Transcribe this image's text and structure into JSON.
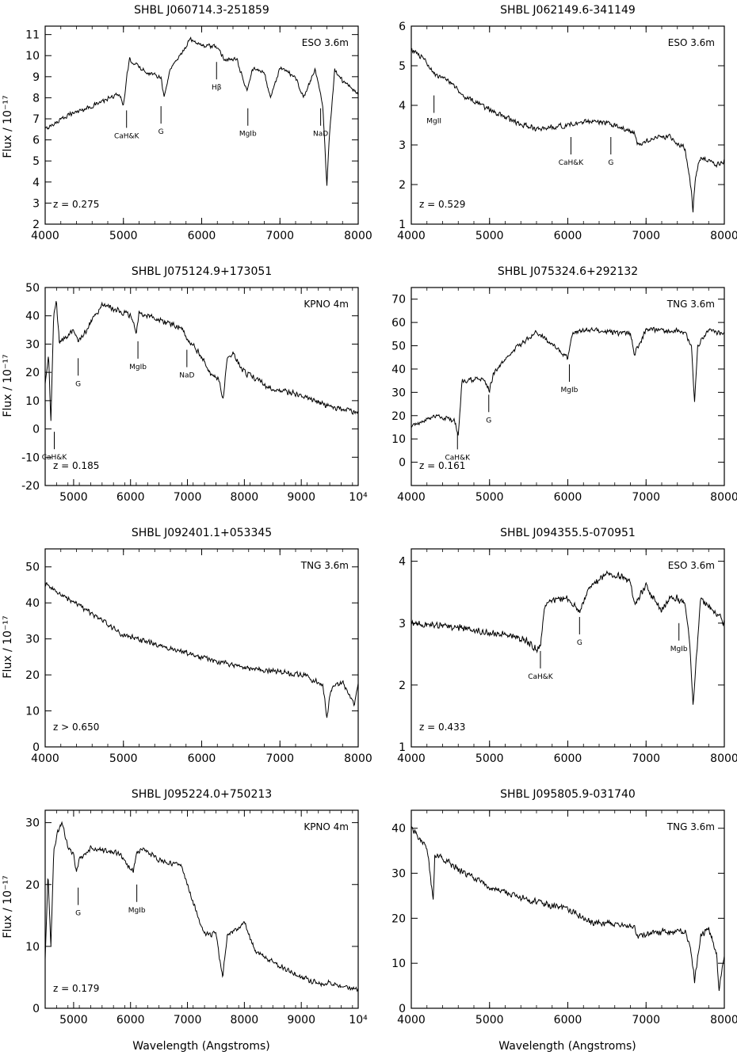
{
  "figure": {
    "ylabel_text": "Flux / 10⁻¹⁷",
    "xlabel_text": "Wavelength (Angstroms)"
  },
  "chart_data": [
    {
      "type": "line",
      "title": "SHBL J060714.3-251859",
      "telescope": "ESO 3.6m",
      "redshift": "z = 0.275",
      "xlim": [
        4000,
        8000
      ],
      "ylim": [
        2,
        11.4
      ],
      "xticks": [
        4000,
        5000,
        6000,
        7000,
        8000
      ],
      "yticks": [
        2,
        3,
        4,
        5,
        6,
        7,
        8,
        9,
        10,
        11
      ],
      "xtick_labels": [
        "4000",
        "5000",
        "6000",
        "7000",
        "8000"
      ],
      "noise": 0.12,
      "x": [
        4000,
        4300,
        4600,
        4950,
        5000,
        5050,
        5080,
        5300,
        5480,
        5520,
        5600,
        5800,
        5850,
        6000,
        6200,
        6300,
        6450,
        6580,
        6650,
        6800,
        6880,
        7000,
        7200,
        7300,
        7450,
        7500,
        7550,
        7570,
        7600,
        7630,
        7660,
        7700,
        7800,
        8000
      ],
      "y": [
        6.5,
        7.2,
        7.6,
        8.2,
        7.6,
        9.2,
        9.8,
        9.2,
        9.0,
        8.0,
        9.4,
        10.4,
        10.8,
        10.5,
        10.4,
        9.8,
        9.8,
        8.3,
        9.4,
        9.2,
        8.0,
        9.4,
        9.0,
        8.0,
        9.3,
        8.5,
        7.5,
        6.0,
        3.8,
        6.0,
        7.5,
        9.3,
        8.8,
        8.2
      ],
      "lines": [
        {
          "label": "CaH&K",
          "x": 5040,
          "y": 7.4
        },
        {
          "label": "G",
          "x": 5480,
          "y": 7.6
        },
        {
          "label": "Hβ",
          "x": 6190,
          "y": 9.7
        },
        {
          "label": "MgIb",
          "x": 6590,
          "y": 7.5
        },
        {
          "label": "NaD",
          "x": 7520,
          "y": 7.5
        }
      ]
    },
    {
      "type": "line",
      "title": "SHBL J062149.6-341149",
      "telescope": "ESO 3.6m",
      "redshift": "z = 0.529",
      "xlim": [
        4000,
        8000
      ],
      "ylim": [
        1,
        6
      ],
      "xticks": [
        4000,
        5000,
        6000,
        7000,
        8000
      ],
      "yticks": [
        1,
        2,
        3,
        4,
        5,
        6
      ],
      "xtick_labels": [
        "4000",
        "5000",
        "6000",
        "7000",
        "8000"
      ],
      "noise": 0.08,
      "x": [
        4000,
        4150,
        4300,
        4500,
        4700,
        5000,
        5300,
        5600,
        6000,
        6300,
        6600,
        6850,
        6900,
        7100,
        7300,
        7500,
        7570,
        7600,
        7630,
        7700,
        7900,
        8000
      ],
      "y": [
        5.4,
        5.2,
        4.8,
        4.6,
        4.2,
        3.9,
        3.6,
        3.4,
        3.5,
        3.6,
        3.5,
        3.3,
        3.0,
        3.2,
        3.2,
        2.9,
        2.0,
        1.3,
        2.2,
        2.7,
        2.5,
        2.6
      ],
      "lines": [
        {
          "label": "MgII",
          "x": 4290,
          "y": 4.25
        },
        {
          "label": "CaH&K",
          "x": 6040,
          "y": 3.2
        },
        {
          "label": "G",
          "x": 6550,
          "y": 3.2
        }
      ]
    },
    {
      "type": "line",
      "title": "SHBL J075124.9+173051",
      "telescope": "KPNO 4m",
      "redshift": "z = 0.185",
      "xlim": [
        4500,
        10000
      ],
      "ylim": [
        -20,
        50
      ],
      "xticks": [
        5000,
        6000,
        7000,
        8000,
        9000,
        10000
      ],
      "yticks": [
        -20,
        -10,
        0,
        10,
        20,
        30,
        40,
        50
      ],
      "xtick_labels": [
        "5000",
        "6000",
        "7000",
        "8000",
        "9000",
        "10⁴"
      ],
      "noise": 1.2,
      "x": [
        4500,
        4560,
        4600,
        4650,
        4700,
        4750,
        5000,
        5100,
        5500,
        6000,
        6100,
        6150,
        6300,
        6700,
        6900,
        7000,
        7200,
        7400,
        7550,
        7620,
        7700,
        7800,
        8000,
        8500,
        9000,
        9500,
        10000
      ],
      "y": [
        16,
        26,
        2,
        40,
        45,
        30,
        35,
        31,
        44,
        40,
        34,
        41,
        40,
        37,
        36,
        32,
        27,
        20,
        18,
        10,
        25,
        27,
        20,
        14,
        12,
        8,
        6
      ],
      "lines": [
        {
          "label": "CaH&K",
          "x": 4660,
          "y": -1
        },
        {
          "label": "G",
          "x": 5080,
          "y": 25
        },
        {
          "label": "MgIb",
          "x": 6130,
          "y": 31
        },
        {
          "label": "NaD",
          "x": 6990,
          "y": 28
        }
      ]
    },
    {
      "type": "line",
      "title": "SHBL J075324.6+292132",
      "telescope": "TNG 3.6m",
      "redshift": "z = 0.161",
      "xlim": [
        4000,
        8000
      ],
      "ylim": [
        -10,
        75
      ],
      "xticks": [
        4000,
        5000,
        6000,
        7000,
        8000
      ],
      "yticks": [
        0,
        10,
        20,
        30,
        40,
        50,
        60,
        70
      ],
      "xtick_labels": [
        "4000",
        "5000",
        "6000",
        "7000",
        "8000"
      ],
      "noise": 1.3,
      "x": [
        4000,
        4300,
        4550,
        4600,
        4650,
        4900,
        5000,
        5050,
        5300,
        5600,
        6000,
        6050,
        6200,
        6800,
        6850,
        7000,
        7500,
        7580,
        7620,
        7660,
        7800,
        8000
      ],
      "y": [
        15,
        20,
        18,
        12,
        35,
        36,
        31,
        38,
        48,
        56,
        45,
        55,
        57,
        55,
        46,
        57,
        56,
        50,
        25,
        50,
        57,
        55
      ],
      "lines": [
        {
          "label": "CaH&K",
          "x": 4590,
          "y": 13
        },
        {
          "label": "G",
          "x": 4990,
          "y": 29
        },
        {
          "label": "MgIb",
          "x": 6020,
          "y": 42
        }
      ]
    },
    {
      "type": "line",
      "title": "SHBL J092401.1+053345",
      "telescope": "TNG 3.6m",
      "redshift": "z > 0.650",
      "xlim": [
        4000,
        8000
      ],
      "ylim": [
        0,
        55
      ],
      "xticks": [
        4000,
        5000,
        6000,
        7000,
        8000
      ],
      "yticks": [
        0,
        10,
        20,
        30,
        40,
        50
      ],
      "xtick_labels": [
        "4000",
        "5000",
        "6000",
        "7000",
        "8000"
      ],
      "noise": 0.9,
      "x": [
        4000,
        4300,
        4600,
        5000,
        5500,
        6000,
        6500,
        7000,
        7300,
        7550,
        7600,
        7650,
        7800,
        7950,
        8000
      ],
      "y": [
        45,
        41,
        37,
        31,
        28,
        25,
        22,
        21,
        20,
        17,
        8,
        16,
        18,
        12,
        18
      ],
      "lines": []
    },
    {
      "type": "line",
      "title": "SHBL J094355.5-070951",
      "telescope": "ESO 3.6m",
      "redshift": "z = 0.433",
      "xlim": [
        4000,
        8000
      ],
      "ylim": [
        1,
        4.2
      ],
      "xticks": [
        4000,
        5000,
        6000,
        7000,
        8000
      ],
      "yticks": [
        1,
        2,
        3,
        4
      ],
      "xtick_labels": [
        "4000",
        "5000",
        "6000",
        "7000",
        "8000"
      ],
      "noise": 0.07,
      "x": [
        4000,
        4500,
        5000,
        5300,
        5500,
        5600,
        5650,
        5700,
        5750,
        6000,
        6150,
        6300,
        6500,
        6800,
        6850,
        7000,
        7200,
        7300,
        7400,
        7500,
        7550,
        7600,
        7650,
        7700,
        7800,
        8000
      ],
      "y": [
        3.0,
        2.95,
        2.85,
        2.8,
        2.7,
        2.55,
        2.65,
        3.2,
        3.35,
        3.4,
        3.2,
        3.6,
        3.8,
        3.7,
        3.3,
        3.6,
        3.2,
        3.4,
        3.4,
        3.3,
        2.8,
        1.7,
        2.6,
        3.4,
        3.3,
        3.0
      ],
      "lines": [
        {
          "label": "CaH&K",
          "x": 5650,
          "y": 2.55
        },
        {
          "label": "G",
          "x": 6150,
          "y": 3.1
        },
        {
          "label": "MgIb",
          "x": 7420,
          "y": 3.0
        }
      ]
    },
    {
      "type": "line",
      "title": "SHBL J095224.0+750213",
      "telescope": "KPNO 4m",
      "redshift": "z = 0.179",
      "xlim": [
        4500,
        10000
      ],
      "ylim": [
        0,
        32
      ],
      "xticks": [
        5000,
        6000,
        7000,
        8000,
        9000,
        10000
      ],
      "yticks": [
        0,
        10,
        20,
        30
      ],
      "xtick_labels": [
        "5000",
        "6000",
        "7000",
        "8000",
        "9000",
        "10⁴"
      ],
      "noise": 0.5,
      "x": [
        4500,
        4550,
        4600,
        4650,
        4700,
        4800,
        4900,
        5000,
        5050,
        5100,
        5300,
        5800,
        6050,
        6100,
        6200,
        6500,
        6900,
        7100,
        7300,
        7500,
        7580,
        7620,
        7700,
        7900,
        8000,
        8200,
        8600,
        9000,
        9300,
        9500,
        10000
      ],
      "y": [
        8,
        22,
        10,
        25,
        28,
        30,
        26,
        25,
        22,
        24,
        26,
        25,
        22,
        25,
        26,
        24,
        23,
        17,
        12,
        12,
        7,
        5,
        12,
        13,
        14,
        9,
        7,
        5,
        4,
        4,
        3
      ],
      "lines": [
        {
          "label": "G",
          "x": 5080,
          "y": 19.5
        },
        {
          "label": "MgIb",
          "x": 6110,
          "y": 20
        }
      ]
    },
    {
      "type": "line",
      "title": "SHBL J095805.9-031740",
      "telescope": "TNG 3.6m",
      "redshift": "",
      "xlim": [
        4000,
        8000
      ],
      "ylim": [
        0,
        44
      ],
      "xticks": [
        4000,
        5000,
        6000,
        7000,
        8000
      ],
      "yticks": [
        0,
        10,
        20,
        30,
        40
      ],
      "xtick_labels": [
        "4000",
        "5000",
        "6000",
        "7000",
        "8000"
      ],
      "noise": 0.9,
      "x": [
        4000,
        4200,
        4280,
        4300,
        4350,
        4600,
        5000,
        5500,
        6000,
        6300,
        6600,
        6850,
        6900,
        7200,
        7500,
        7580,
        7620,
        7700,
        7800,
        7900,
        7930,
        8000
      ],
      "y": [
        40,
        36,
        24,
        34,
        34,
        31,
        27,
        24,
        22,
        19,
        19,
        18,
        16,
        17,
        17,
        12,
        6,
        16,
        18,
        12,
        4,
        12
      ],
      "lines": []
    }
  ]
}
